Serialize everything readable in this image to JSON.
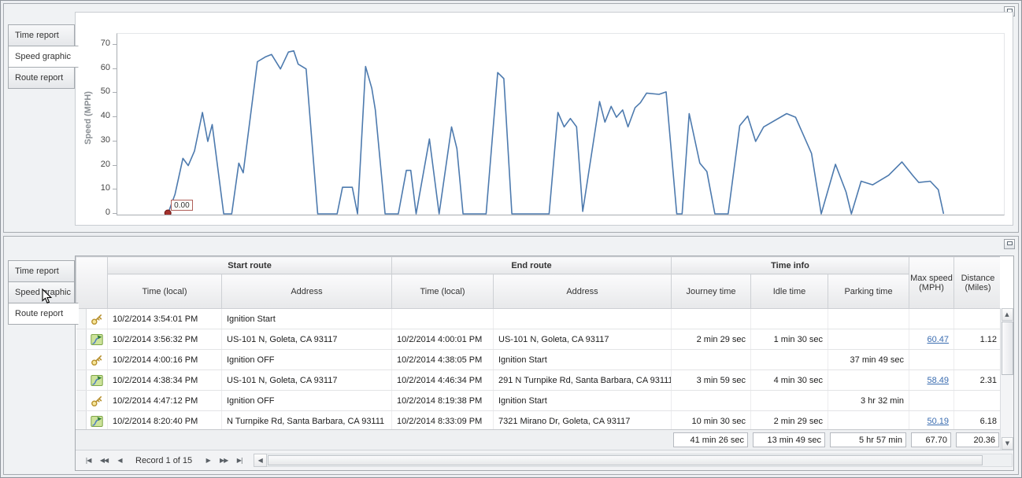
{
  "chart_data": {
    "type": "line",
    "title": "",
    "xlabel": "",
    "ylabel": "Speed (MPH)",
    "ylim": [
      0,
      70
    ],
    "yticks": [
      0,
      10,
      20,
      30,
      40,
      50,
      60,
      70
    ],
    "grid": false,
    "legend": "none",
    "line_color": "#4d7aae",
    "marker": {
      "label": "0.00",
      "color": "#a3312c",
      "at_percent": 5.7,
      "value": 0
    },
    "series": [
      {
        "name": "Speed (MPH)",
        "points_percent_mph": [
          [
            5.7,
            0
          ],
          [
            6.5,
            8
          ],
          [
            7.4,
            23
          ],
          [
            8,
            20
          ],
          [
            8.7,
            26
          ],
          [
            9.6,
            42
          ],
          [
            10.2,
            30
          ],
          [
            10.7,
            37
          ],
          [
            11.3,
            20
          ],
          [
            12,
            0
          ],
          [
            12.9,
            0
          ],
          [
            13.7,
            21
          ],
          [
            14.2,
            17
          ],
          [
            15.8,
            63
          ],
          [
            16.7,
            65
          ],
          [
            17.4,
            66
          ],
          [
            18.4,
            60
          ],
          [
            19.3,
            67
          ],
          [
            19.9,
            67.5
          ],
          [
            20.4,
            62
          ],
          [
            21.3,
            60
          ],
          [
            22.6,
            0
          ],
          [
            24.8,
            0
          ],
          [
            25.4,
            11
          ],
          [
            26.5,
            11
          ],
          [
            27.1,
            0
          ],
          [
            28,
            61
          ],
          [
            28.7,
            52
          ],
          [
            29.1,
            43
          ],
          [
            30.2,
            0
          ],
          [
            31.7,
            0
          ],
          [
            32.6,
            18
          ],
          [
            33.1,
            18
          ],
          [
            33.7,
            0
          ],
          [
            35.2,
            31
          ],
          [
            36.3,
            0
          ],
          [
            37.7,
            36
          ],
          [
            38.3,
            27
          ],
          [
            39,
            0
          ],
          [
            41.6,
            0
          ],
          [
            42.9,
            58.5
          ],
          [
            43.6,
            56
          ],
          [
            44.5,
            0
          ],
          [
            48.7,
            0
          ],
          [
            49.7,
            42
          ],
          [
            50.4,
            36
          ],
          [
            51.1,
            39.5
          ],
          [
            51.8,
            36
          ],
          [
            52.5,
            1
          ],
          [
            54.4,
            46.5
          ],
          [
            55,
            38
          ],
          [
            55.7,
            44.5
          ],
          [
            56.3,
            40
          ],
          [
            57,
            43
          ],
          [
            57.6,
            36
          ],
          [
            58.4,
            44
          ],
          [
            59,
            46
          ],
          [
            59.7,
            50
          ],
          [
            61.1,
            49.5
          ],
          [
            61.9,
            50.5
          ],
          [
            63.1,
            0
          ],
          [
            63.7,
            0
          ],
          [
            64.5,
            41.5
          ],
          [
            65.7,
            21
          ],
          [
            66.5,
            17.5
          ],
          [
            67.4,
            0
          ],
          [
            68.9,
            0
          ],
          [
            70.2,
            36.5
          ],
          [
            71.1,
            40.5
          ],
          [
            72,
            30
          ],
          [
            72.9,
            36
          ],
          [
            75.5,
            41.5
          ],
          [
            76.5,
            40
          ],
          [
            78.3,
            25
          ],
          [
            79.4,
            0
          ],
          [
            81,
            20.5
          ],
          [
            82.2,
            9
          ],
          [
            82.8,
            0
          ],
          [
            83.9,
            13.5
          ],
          [
            85.2,
            12
          ],
          [
            87,
            16
          ],
          [
            88.5,
            21.5
          ],
          [
            89.7,
            16
          ],
          [
            90.4,
            13
          ],
          [
            91.7,
            13.5
          ],
          [
            92.6,
            10
          ],
          [
            93.2,
            0
          ]
        ]
      }
    ]
  },
  "top_panel": {
    "tabs": [
      {
        "label": "Time report",
        "active": false
      },
      {
        "label": "Speed graphic",
        "active": true
      },
      {
        "label": "Route report",
        "active": false
      }
    ]
  },
  "bottom_panel": {
    "tabs": [
      {
        "label": "Time report",
        "active": false
      },
      {
        "label": "Speed graphic",
        "active": false
      },
      {
        "label": "Route report",
        "active": true
      }
    ]
  },
  "grid": {
    "groups": [
      {
        "label": "Start route"
      },
      {
        "label": "End route"
      },
      {
        "label": "Time info"
      }
    ],
    "columns": {
      "start_time": "Time (local)",
      "start_address": "Address",
      "end_time": "Time (local)",
      "end_address": "Address",
      "journey": "Journey time",
      "idle": "Idle time",
      "parking": "Parking time",
      "max_speed": "Max speed (MPH)",
      "distance": "Distance (Miles)"
    },
    "rows": [
      {
        "icon": "key",
        "start_time": "10/2/2014 3:54:01 PM",
        "start_address": "Ignition Start",
        "end_time": "",
        "end_address": "",
        "journey": "",
        "idle": "",
        "parking": "",
        "max_speed": "",
        "distance": ""
      },
      {
        "icon": "route",
        "start_time": "10/2/2014 3:56:32 PM",
        "start_address": "US-101 N, Goleta, CA 93117",
        "end_time": "10/2/2014 4:00:01 PM",
        "end_address": "US-101 N, Goleta, CA 93117",
        "journey": "2 min 29 sec",
        "idle": "1 min 30 sec",
        "parking": "",
        "max_speed": "60.47",
        "distance": "1.12"
      },
      {
        "icon": "key",
        "start_time": "10/2/2014 4:00:16 PM",
        "start_address": "Ignition OFF",
        "end_time": "10/2/2014 4:38:05 PM",
        "end_address": "Ignition Start",
        "journey": "",
        "idle": "",
        "parking": "37 min 49 sec",
        "max_speed": "",
        "distance": ""
      },
      {
        "icon": "route",
        "start_time": "10/2/2014 4:38:34 PM",
        "start_address": "US-101 N, Goleta, CA 93117",
        "end_time": "10/2/2014 4:46:34 PM",
        "end_address": "291 N Turnpike Rd, Santa Barbara, CA 93111",
        "journey": "3 min 59 sec",
        "idle": "4 min 30 sec",
        "parking": "",
        "max_speed": "58.49",
        "distance": "2.31"
      },
      {
        "icon": "key",
        "start_time": "10/2/2014 4:47:12 PM",
        "start_address": "Ignition OFF",
        "end_time": "10/2/2014 8:19:38 PM",
        "end_address": "Ignition Start",
        "journey": "",
        "idle": "",
        "parking": "3 hr 32 min",
        "max_speed": "",
        "distance": ""
      },
      {
        "icon": "route",
        "start_time": "10/2/2014 8:20:40 PM",
        "start_address": "N Turnpike Rd, Santa Barbara, CA 93111",
        "end_time": "10/2/2014 8:33:09 PM",
        "end_address": "7321 Mirano Dr, Goleta, CA 93117",
        "journey": "10 min 30 sec",
        "idle": "2 min 29 sec",
        "parking": "",
        "max_speed": "50.19",
        "distance": "6.18"
      }
    ],
    "summary": {
      "journey": "41 min 26 sec",
      "idle": "13 min 49 sec",
      "parking": "5 hr 57 min",
      "max_speed": "67.70",
      "distance": "20.36"
    },
    "pager": {
      "first": "|◀",
      "prev_page": "◀◀",
      "prev": "◀",
      "text": "Record 1 of 15",
      "next": "▶",
      "next_page": "▶▶",
      "last": "▶|",
      "hscroll_left": "◀"
    },
    "vscroll": {
      "up": "▲",
      "down": "▼"
    }
  }
}
